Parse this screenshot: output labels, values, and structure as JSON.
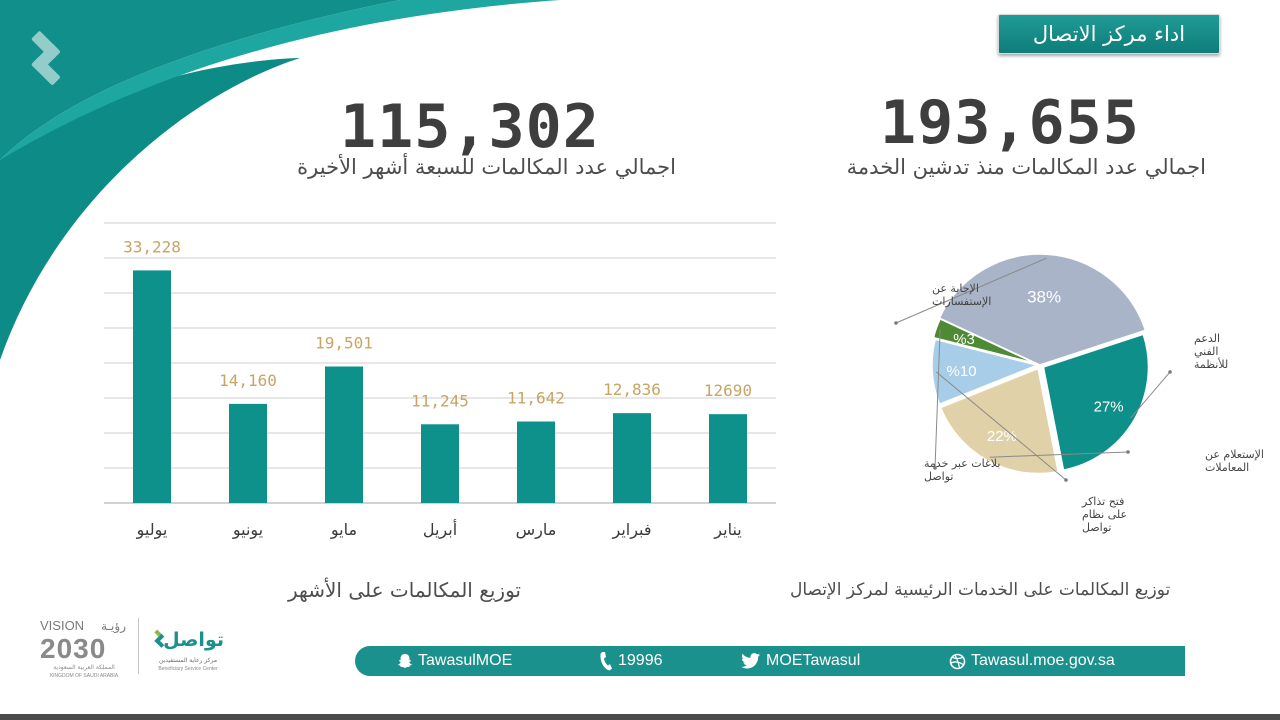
{
  "header": {
    "title": "اداء مركز الاتصال"
  },
  "stats": {
    "total_7_months": {
      "value": "115,302",
      "label": "اجمالي عدد المكالمات  للسبعة أشهر الأخيرة"
    },
    "total_since_launch": {
      "value": "193,655",
      "label": "اجمالي عدد المكالمات منذ تدشين الخدمة"
    }
  },
  "chart_data": [
    {
      "type": "bar",
      "categories": [
        "يوليو",
        "يونيو",
        "مايو",
        "أبريل",
        "مارس",
        "فبراير",
        "يناير"
      ],
      "values": [
        33228,
        14160,
        19501,
        11245,
        11642,
        12836,
        12690
      ],
      "value_labels": [
        "33,228",
        "14,160",
        "19,501",
        "11,245",
        "11,642",
        "12,836",
        "12690"
      ],
      "title": "توزيع المكالمات على الأشهر",
      "xlabel": "",
      "ylabel": "",
      "ylim": [
        0,
        40000
      ],
      "grid": true,
      "bar_color": "#0e918b",
      "label_color": "#c8a465"
    },
    {
      "type": "pie",
      "title": "توزيع المكالمات على الخدمات الرئيسية لمركز الإتصال",
      "slices": [
        {
          "label": "الإجابة عن الإستفسارات",
          "value": 38,
          "text": "38%",
          "color": "#a9b4c8"
        },
        {
          "label": "الدعم الفني للأنظمة",
          "value": 27,
          "text": "27%",
          "color": "#0e8f89"
        },
        {
          "label": "الإستعلام عن المعاملات",
          "value": 22,
          "text": "22%",
          "color": "#e0d1a8"
        },
        {
          "label": "فتح تذاكر على نظام تواصل",
          "value": 10,
          "text": "%10",
          "color": "#a7cde8"
        },
        {
          "label": "بلاغات عبر خدمة تواصل",
          "value": 3,
          "text": "%3",
          "color": "#4e8a33"
        }
      ]
    }
  ],
  "footer": {
    "snapchat": "TawasulMOE",
    "phone": "19996",
    "twitter": "MOETawasul",
    "website": "Tawasul.moe.gov.sa"
  },
  "logos": {
    "vision_latin": "VISION",
    "vision_arabic": "رؤيـة",
    "vision_year": "2030",
    "vision_kingdom_ar": "المملكة العربية السعودية",
    "vision_kingdom_en": "KINGDOM OF SAUDI ARABIA",
    "tawasul_name": "تواصل",
    "tawasul_sub_ar": "مركز رعاية المستفيدين",
    "tawasul_sub_en": "Beneficiary Service Center"
  },
  "colors": {
    "teal": "#0e918b",
    "gold": "#c8a465",
    "text": "#3e3e3e"
  }
}
